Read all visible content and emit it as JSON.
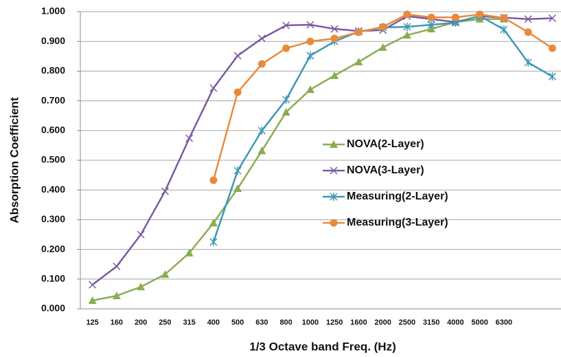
{
  "chart_data": {
    "type": "line",
    "y_label": "Absorption Coefficient",
    "x_label": "1/3 Octave band Freq. (Hz)",
    "categories": [
      "125",
      "160",
      "200",
      "250",
      "315",
      "400",
      "500",
      "630",
      "800",
      "1000",
      "1250",
      "1600",
      "2000",
      "2500",
      "3150",
      "4000",
      "5000",
      "6300",
      null,
      null
    ],
    "ylim": [
      0,
      1
    ],
    "yticks": [
      {
        "value": 0,
        "label": "0.000"
      },
      {
        "value": 0.1,
        "label": "0.100"
      },
      {
        "value": 0.2,
        "label": "0.200"
      },
      {
        "value": 0.3,
        "label": "0.300"
      },
      {
        "value": 0.4,
        "label": "0.400"
      },
      {
        "value": 0.5,
        "label": "0.500"
      },
      {
        "value": 0.6,
        "label": "0.600"
      },
      {
        "value": 0.7,
        "label": "0.700"
      },
      {
        "value": 0.8,
        "label": "0.800"
      },
      {
        "value": 0.9,
        "label": "0.900"
      },
      {
        "value": 1,
        "label": "1.000"
      }
    ],
    "grid": true,
    "series": [
      {
        "name": "NOVA(2-Layer)",
        "color": "#8aac52",
        "marker": "triangle",
        "values": [
          0.028,
          0.044,
          0.074,
          0.116,
          0.188,
          0.289,
          0.405,
          0.532,
          0.662,
          0.738,
          0.785,
          0.831,
          0.88,
          0.921,
          0.942,
          0.965,
          0.975,
          0.975,
          null,
          null
        ]
      },
      {
        "name": "NOVA(3-Layer)",
        "color": "#7b5aa0",
        "marker": "x",
        "values": [
          0.081,
          0.143,
          0.25,
          0.396,
          0.574,
          0.743,
          0.852,
          0.91,
          0.954,
          0.956,
          0.942,
          0.935,
          0.938,
          0.985,
          0.975,
          0.965,
          0.985,
          0.98,
          0.975,
          0.978
        ]
      },
      {
        "name": "Measuring(2-Layer)",
        "color": "#3f96b4",
        "marker": "star",
        "values": [
          null,
          null,
          null,
          null,
          null,
          0.225,
          0.465,
          0.6,
          0.704,
          0.852,
          0.9,
          0.933,
          0.947,
          0.949,
          0.956,
          0.963,
          0.986,
          0.94,
          0.829,
          0.782
        ]
      },
      {
        "name": "Measuring(3-Layer)",
        "color": "#e88a3c",
        "marker": "circle",
        "values": [
          null,
          null,
          null,
          null,
          null,
          0.433,
          0.729,
          0.824,
          0.877,
          0.9,
          0.91,
          0.931,
          0.949,
          0.991,
          0.981,
          0.981,
          0.991,
          0.979,
          0.931,
          0.877
        ]
      }
    ]
  }
}
